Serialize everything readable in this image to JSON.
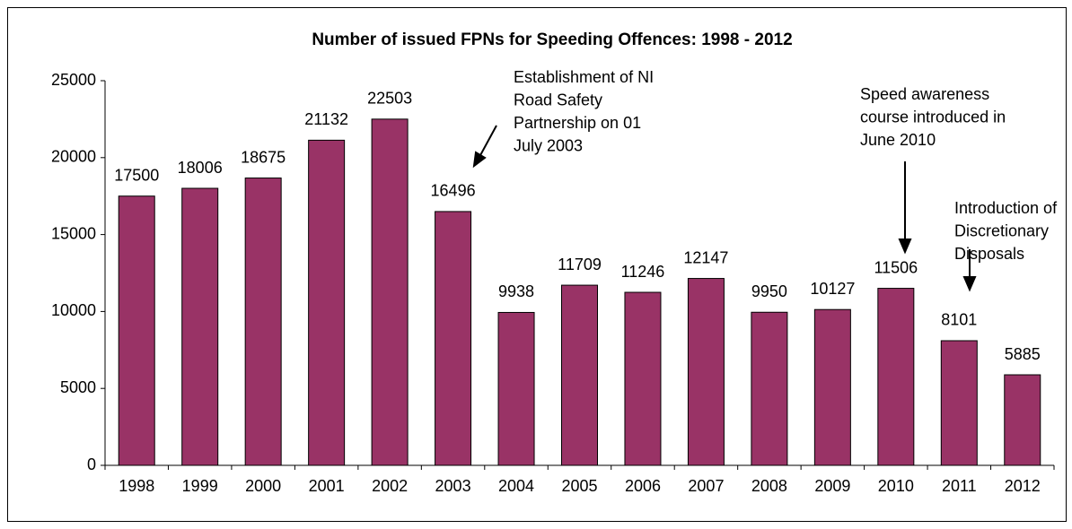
{
  "chart_data": {
    "type": "bar",
    "title": "Number of issued FPNs for Speeding Offences: 1998 - 2012",
    "categories": [
      "1998",
      "1999",
      "2000",
      "2001",
      "2002",
      "2003",
      "2004",
      "2005",
      "2006",
      "2007",
      "2008",
      "2009",
      "2010",
      "2011",
      "2012"
    ],
    "values": [
      17500,
      18006,
      18675,
      21132,
      22503,
      16496,
      9938,
      11709,
      11246,
      12147,
      9950,
      10127,
      11506,
      8101,
      5885
    ],
    "color": "#993366",
    "ylim": [
      0,
      25000
    ],
    "yticks": [
      0,
      5000,
      10000,
      15000,
      20000,
      25000
    ],
    "grid": false,
    "annotations": [
      {
        "text": [
          "Establishment of NI",
          "Road Safety",
          "Partnership on 01",
          "July 2003"
        ]
      },
      {
        "text": [
          "Speed awareness",
          "course introduced in",
          "June 2010"
        ]
      },
      {
        "text": [
          "Introduction of",
          "Discretionary",
          "Disposals"
        ]
      }
    ]
  }
}
